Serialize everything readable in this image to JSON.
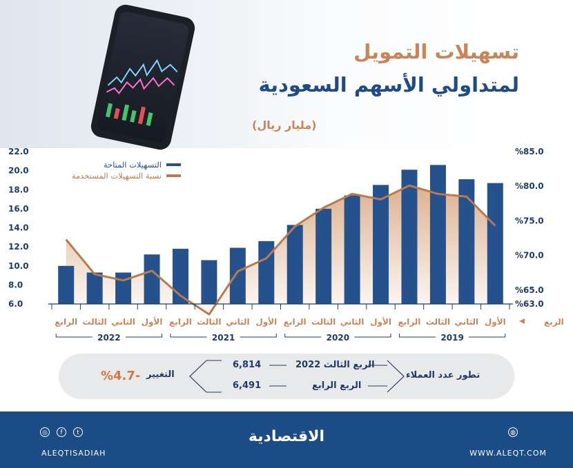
{
  "header": {
    "title_line1": "تسهيلات التمويل",
    "title_line2": "لمتداولي الأسهم السعودية",
    "unit": "(مليار ريال)"
  },
  "colors": {
    "bar": "#25518d",
    "line": "#b87a4e",
    "area_top": "#dcae8a",
    "title_orange": "#c8855a",
    "title_blue": "#1f4c86",
    "footer": "#1c4c86"
  },
  "chart_data": {
    "type": "bar",
    "categories": [
      "الأول",
      "الثاني",
      "الثالث",
      "الرابع",
      "الأول",
      "الثاني",
      "الثالث",
      "الرابع",
      "الأول",
      "الثاني",
      "الثالث",
      "الرابع",
      "الأول",
      "الثاني",
      "الثالث",
      "الرابع"
    ],
    "category_year_groups": [
      {
        "year": "2019",
        "from": 0,
        "to": 3
      },
      {
        "year": "2020",
        "from": 4,
        "to": 7
      },
      {
        "year": "2021",
        "from": 8,
        "to": 11
      },
      {
        "year": "2022",
        "from": 12,
        "to": 15
      }
    ],
    "x_axis_order": "right-to-left",
    "series": [
      {
        "name": "التسهيلات المتاحة",
        "type": "bar",
        "axis": "left",
        "values": [
          10.0,
          9.3,
          9.3,
          11.2,
          11.8,
          10.6,
          11.9,
          12.6,
          14.3,
          16.0,
          17.4,
          18.5,
          20.1,
          20.6,
          19.1,
          18.7
        ]
      },
      {
        "name": "نسبة التسهيلات المستخدمة",
        "type": "line",
        "axis": "right",
        "values": [
          72.3,
          67.3,
          66.4,
          67.8,
          64.2,
          61.5,
          67.7,
          69.6,
          74.2,
          76.9,
          78.9,
          78.1,
          80.1,
          78.9,
          78.5,
          74.3
        ]
      }
    ],
    "y_left": {
      "min": 6.0,
      "max": 22.0,
      "ticks": [
        "6.0",
        "8.0",
        "10.0",
        "12.0",
        "14.0",
        "16.0",
        "18.0",
        "20.0",
        "22.0"
      ]
    },
    "y_right": {
      "min": 63.0,
      "max": 85.0,
      "ticks": [
        "%63.0",
        "%65.0",
        "%70.0",
        "%75.0",
        "%80.0",
        "%85.0"
      ]
    },
    "x_axis_label": "الربع",
    "legend_position": "top-left",
    "grid": false
  },
  "info": {
    "label": "تطور عدد العملاء",
    "q3_label": "الربع الثالث 2022",
    "q3_value": "6,814",
    "q4_label": "الربع الرابع",
    "q4_value": "6,491",
    "change_label": "التغيير",
    "change_value": "%4.7-"
  },
  "footer": {
    "brand": "الاقتصادية",
    "handle": "ALEQTISADIAH",
    "website": "WWW.ALEQT.COM"
  }
}
